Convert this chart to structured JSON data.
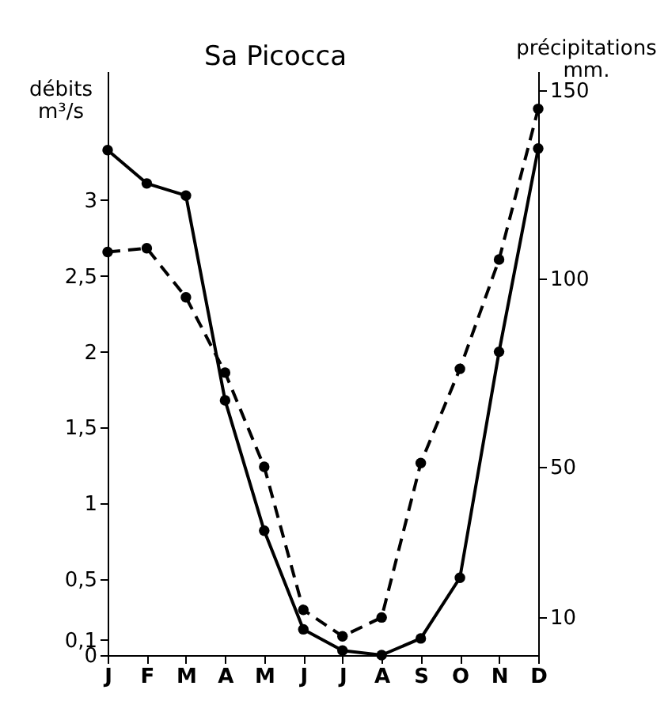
{
  "chart_data": {
    "type": "line",
    "title": "Sa Picocca",
    "categories": [
      "J",
      "F",
      "M",
      "A",
      "M",
      "J",
      "J",
      "A",
      "S",
      "O",
      "N",
      "D"
    ],
    "ylabel": "débits\nm³/s",
    "y2label": "précipitations\nmm.",
    "ylim": [
      0,
      3.85
    ],
    "yticks": [
      0,
      {
        "value": 0.1,
        "label": "0,1"
      },
      {
        "value": 0.5,
        "label": "0,5"
      },
      1,
      {
        "value": 1.5,
        "label": "1,5"
      },
      2,
      {
        "value": 2.5,
        "label": "2,5"
      },
      3
    ],
    "y2lim": [
      0,
      155
    ],
    "y2ticks": [
      10,
      50,
      100,
      150
    ],
    "series": [
      {
        "color": "#000000",
        "line_style": "solid",
        "values": [
          3.33,
          3.11,
          3.03,
          1.68,
          0.82,
          0.17,
          0.03,
          0,
          0.11,
          0.51,
          2.0,
          3.34
        ]
      },
      {
        "color": "#000000",
        "line_style": "dashed",
        "axis": "y2",
        "values": [
          107,
          108,
          95,
          75,
          50,
          12,
          5,
          10,
          51,
          76,
          105,
          145
        ]
      }
    ],
    "marker": "circle",
    "grid": false
  }
}
